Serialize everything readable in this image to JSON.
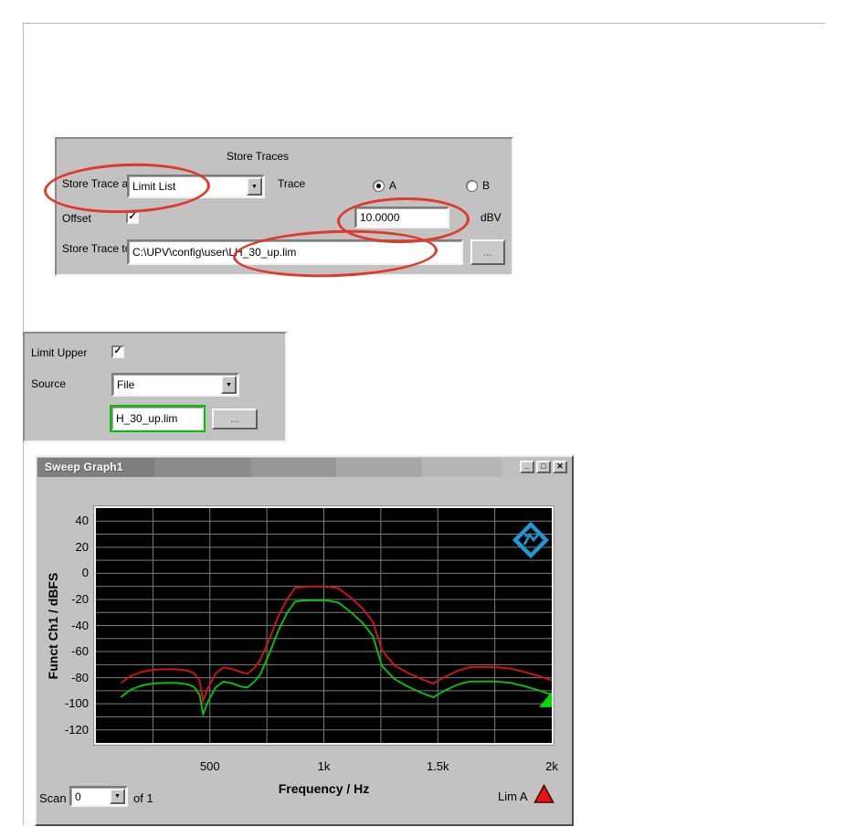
{
  "ui": {
    "dropdown_arrow": "▼",
    "check_glyph": "✓",
    "minimize_glyph": "_",
    "maximize_glyph": "□",
    "close_glyph": "✕"
  },
  "store_traces": {
    "title": "Store Traces",
    "store_trace_as_label": "Store Trace as",
    "store_trace_as_value": "Limit List",
    "trace_label": "Trace",
    "radio_a_label": "A",
    "radio_b_label": "B",
    "selected_trace": "A",
    "offset_label": "Offset",
    "offset_checked": true,
    "offset_value": "10.0000",
    "offset_unit": "dBV",
    "store_trace_to_label": "Store Trace to",
    "store_trace_to_value": "C:\\UPV\\config\\user\\LH_30_up.lim",
    "browse_label": "..."
  },
  "limit_upper": {
    "limit_upper_label": "Limit Upper",
    "limit_upper_checked": true,
    "source_label": "Source",
    "source_value": "File",
    "file_value": "H_30_up.lim",
    "browse_label": "..."
  },
  "graph_window": {
    "title": "Sweep Graph1",
    "scan_label": "Scan",
    "scan_value": "0",
    "scan_total": "of 1",
    "lim_badge": "Lim A"
  },
  "annotations": {
    "ellipse_color": "#e0392a"
  },
  "chart_data": {
    "type": "line",
    "xlabel": "Frequency / Hz",
    "ylabel": "Funct Ch1 / dBFS",
    "xlim": [
      0,
      2000
    ],
    "ylim": [
      -130,
      50
    ],
    "plot_bg": "#000000",
    "grid": {
      "x_step": 250,
      "y_step": 10,
      "color": "#7d7d7d"
    },
    "x_ticks": [
      {
        "v": 500,
        "label": "500"
      },
      {
        "v": 1000,
        "label": "1k"
      },
      {
        "v": 1500,
        "label": "1.5k"
      },
      {
        "v": 2000,
        "label": "2k"
      }
    ],
    "y_ticks": [
      {
        "v": 40,
        "label": "40"
      },
      {
        "v": 20,
        "label": "20"
      },
      {
        "v": 0,
        "label": "0"
      },
      {
        "v": -20,
        "label": "-20"
      },
      {
        "v": -40,
        "label": "-40"
      },
      {
        "v": -60,
        "label": "-60"
      },
      {
        "v": -80,
        "label": "-80"
      },
      {
        "v": -100,
        "label": "-100"
      },
      {
        "v": -120,
        "label": "-120"
      }
    ],
    "x": [
      110,
      150,
      200,
      250,
      300,
      350,
      400,
      430,
      455,
      470,
      490,
      525,
      560,
      600,
      640,
      665,
      695,
      720,
      760,
      800,
      840,
      875,
      920,
      970,
      1020,
      1065,
      1120,
      1170,
      1215,
      1255,
      1310,
      1360,
      1420,
      1480,
      1530,
      1590,
      1640,
      1700,
      1760,
      1820,
      1880,
      1940,
      2000
    ],
    "series": [
      {
        "name": "limit-upper-red",
        "color": "#dd1111",
        "y": [
          -84,
          -79,
          -75.5,
          -74,
          -73.5,
          -73.5,
          -74.5,
          -76.5,
          -82,
          -98,
          -88.5,
          -77,
          -72,
          -73.5,
          -76,
          -77,
          -72.5,
          -67,
          -51,
          -33,
          -19.5,
          -11,
          -10.3,
          -10,
          -10.3,
          -11.5,
          -19,
          -27,
          -37,
          -59,
          -70.5,
          -75.5,
          -80.5,
          -84.5,
          -79.5,
          -74.5,
          -72,
          -71.8,
          -72,
          -73,
          -75.5,
          -78.5,
          -82
        ]
      },
      {
        "name": "funct-ch1-green",
        "color": "#00cc00",
        "y": [
          -95,
          -89.5,
          -86,
          -84.5,
          -84,
          -84,
          -85,
          -87,
          -93,
          -108,
          -99,
          -87.5,
          -83,
          -84.5,
          -87,
          -87.5,
          -83,
          -78,
          -62,
          -44,
          -30,
          -21.5,
          -20.8,
          -20.7,
          -21,
          -22.5,
          -30,
          -38,
          -48,
          -71,
          -81,
          -86,
          -91,
          -95,
          -90,
          -85,
          -83,
          -82.8,
          -83,
          -84,
          -86.5,
          -89.5,
          -93
        ]
      }
    ],
    "cursor": {
      "x": 2000,
      "y": -97,
      "color": "#00dd00"
    }
  }
}
